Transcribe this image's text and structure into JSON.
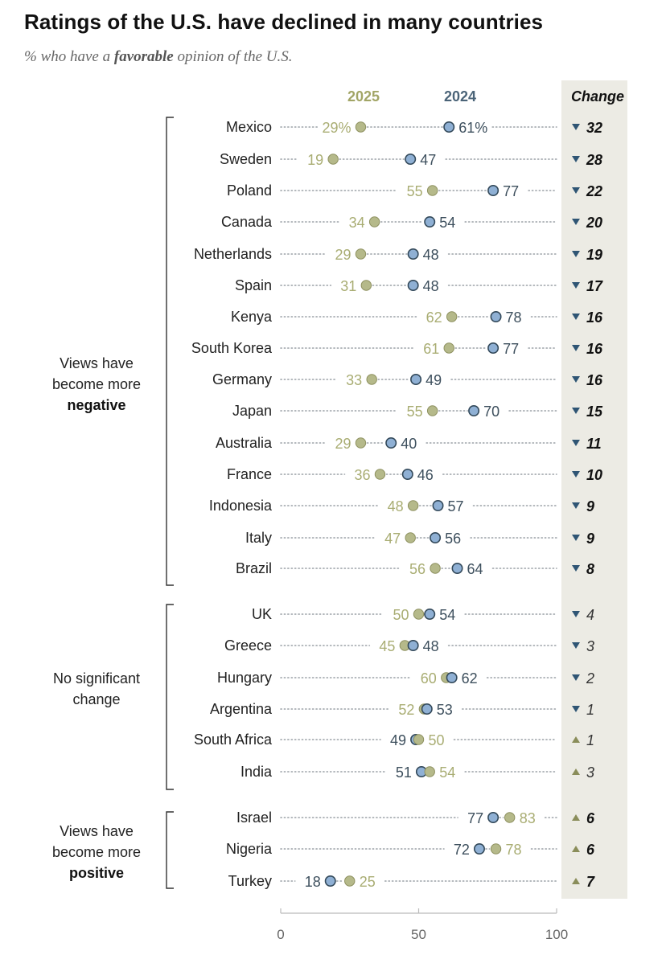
{
  "title": "Ratings of the U.S. have declined in many countries",
  "subtitle_prefix": "% who have a ",
  "subtitle_emph": "favorable",
  "subtitle_suffix": " opinion of the U.S.",
  "colors": {
    "y2025": "#b5b98a",
    "y2024": "#8fb0d4",
    "outline": "#33495a",
    "change_panel": "#ecebe4"
  },
  "chart_data": {
    "type": "dot",
    "legend": [
      "2025",
      "2024"
    ],
    "change_header": "Change",
    "xlim": [
      0,
      100
    ],
    "xticks": [
      0,
      50,
      100
    ],
    "groups": [
      {
        "label": [
          "Views have",
          "become more",
          "negative"
        ],
        "rows": [
          {
            "country": "Mexico",
            "y2025": 29,
            "y2024": 61,
            "label2025": "29%",
            "label2024": "61%",
            "change": 32,
            "dir": "down",
            "significant": true
          },
          {
            "country": "Sweden",
            "y2025": 19,
            "y2024": 47,
            "label2025": "19",
            "label2024": "47",
            "change": 28,
            "dir": "down",
            "significant": true
          },
          {
            "country": "Poland",
            "y2025": 55,
            "y2024": 77,
            "label2025": "55",
            "label2024": "77",
            "change": 22,
            "dir": "down",
            "significant": true
          },
          {
            "country": "Canada",
            "y2025": 34,
            "y2024": 54,
            "label2025": "34",
            "label2024": "54",
            "change": 20,
            "dir": "down",
            "significant": true
          },
          {
            "country": "Netherlands",
            "y2025": 29,
            "y2024": 48,
            "label2025": "29",
            "label2024": "48",
            "change": 19,
            "dir": "down",
            "significant": true
          },
          {
            "country": "Spain",
            "y2025": 31,
            "y2024": 48,
            "label2025": "31",
            "label2024": "48",
            "change": 17,
            "dir": "down",
            "significant": true
          },
          {
            "country": "Kenya",
            "y2025": 62,
            "y2024": 78,
            "label2025": "62",
            "label2024": "78",
            "change": 16,
            "dir": "down",
            "significant": true
          },
          {
            "country": "South Korea",
            "y2025": 61,
            "y2024": 77,
            "label2025": "61",
            "label2024": "77",
            "change": 16,
            "dir": "down",
            "significant": true
          },
          {
            "country": "Germany",
            "y2025": 33,
            "y2024": 49,
            "label2025": "33",
            "label2024": "49",
            "change": 16,
            "dir": "down",
            "significant": true
          },
          {
            "country": "Japan",
            "y2025": 55,
            "y2024": 70,
            "label2025": "55",
            "label2024": "70",
            "change": 15,
            "dir": "down",
            "significant": true
          },
          {
            "country": "Australia",
            "y2025": 29,
            "y2024": 40,
            "label2025": "29",
            "label2024": "40",
            "change": 11,
            "dir": "down",
            "significant": true
          },
          {
            "country": "France",
            "y2025": 36,
            "y2024": 46,
            "label2025": "36",
            "label2024": "46",
            "change": 10,
            "dir": "down",
            "significant": true
          },
          {
            "country": "Indonesia",
            "y2025": 48,
            "y2024": 57,
            "label2025": "48",
            "label2024": "57",
            "change": 9,
            "dir": "down",
            "significant": true
          },
          {
            "country": "Italy",
            "y2025": 47,
            "y2024": 56,
            "label2025": "47",
            "label2024": "56",
            "change": 9,
            "dir": "down",
            "significant": true
          },
          {
            "country": "Brazil",
            "y2025": 56,
            "y2024": 64,
            "label2025": "56",
            "label2024": "64",
            "change": 8,
            "dir": "down",
            "significant": true
          }
        ]
      },
      {
        "label": [
          "No significant",
          "change"
        ],
        "rows": [
          {
            "country": "UK",
            "y2025": 50,
            "y2024": 54,
            "label2025": "50",
            "label2024": "54",
            "change": 4,
            "dir": "down",
            "significant": false
          },
          {
            "country": "Greece",
            "y2025": 45,
            "y2024": 48,
            "label2025": "45",
            "label2024": "48",
            "change": 3,
            "dir": "down",
            "significant": false
          },
          {
            "country": "Hungary",
            "y2025": 60,
            "y2024": 62,
            "label2025": "60",
            "label2024": "62",
            "change": 2,
            "dir": "down",
            "significant": false
          },
          {
            "country": "Argentina",
            "y2025": 52,
            "y2024": 53,
            "label2025": "52",
            "label2024": "53",
            "change": 1,
            "dir": "down",
            "significant": false
          },
          {
            "country": "South Africa",
            "y2025": 50,
            "y2024": 49,
            "label2025": "50",
            "label2024": "49",
            "change": 1,
            "dir": "up",
            "significant": false
          },
          {
            "country": "India",
            "y2025": 54,
            "y2024": 51,
            "label2025": "54",
            "label2024": "51",
            "change": 3,
            "dir": "up",
            "significant": false
          }
        ]
      },
      {
        "label": [
          "Views have",
          "become more",
          "positive"
        ],
        "rows": [
          {
            "country": "Israel",
            "y2025": 83,
            "y2024": 77,
            "label2025": "83",
            "label2024": "77",
            "change": 6,
            "dir": "up",
            "significant": true
          },
          {
            "country": "Nigeria",
            "y2025": 78,
            "y2024": 72,
            "label2025": "78",
            "label2024": "72",
            "change": 6,
            "dir": "up",
            "significant": true
          },
          {
            "country": "Turkey",
            "y2025": 25,
            "y2024": 18,
            "label2025": "25",
            "label2024": "18",
            "change": 7,
            "dir": "up",
            "significant": true
          }
        ]
      }
    ]
  }
}
